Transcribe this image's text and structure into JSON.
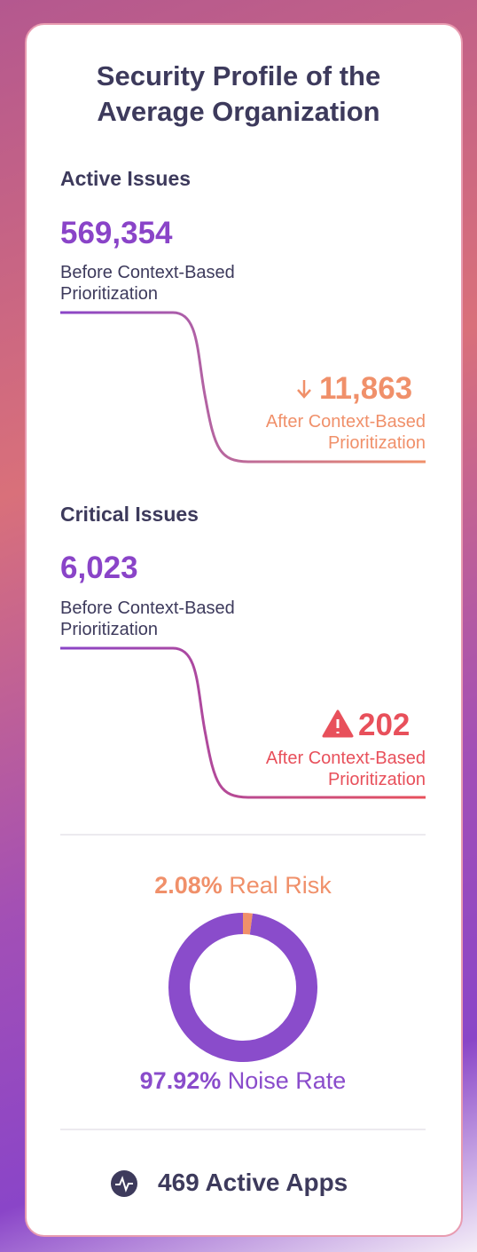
{
  "title": "Security Profile of the Average Organization",
  "sections": [
    {
      "heading": "Active Issues",
      "before_value": "569,354",
      "before_label": "Before Context-Based Prioritization",
      "after_value": "11,863",
      "after_label": "After Context-Based Prioritization"
    },
    {
      "heading": "Critical Issues",
      "before_value": "6,023",
      "before_label": "Before Context-Based Prioritization",
      "after_value": "202",
      "after_label": "After Context-Based Prioritization"
    }
  ],
  "donut": {
    "values": [
      2.08,
      97.92
    ],
    "value_labels": [
      "2.08%",
      "97.92%"
    ],
    "labels": [
      "Real Risk",
      "Noise Rate"
    ],
    "colors": [
      "#f0906a",
      "#8a4ccb"
    ]
  },
  "footer": "469 Active Apps"
}
